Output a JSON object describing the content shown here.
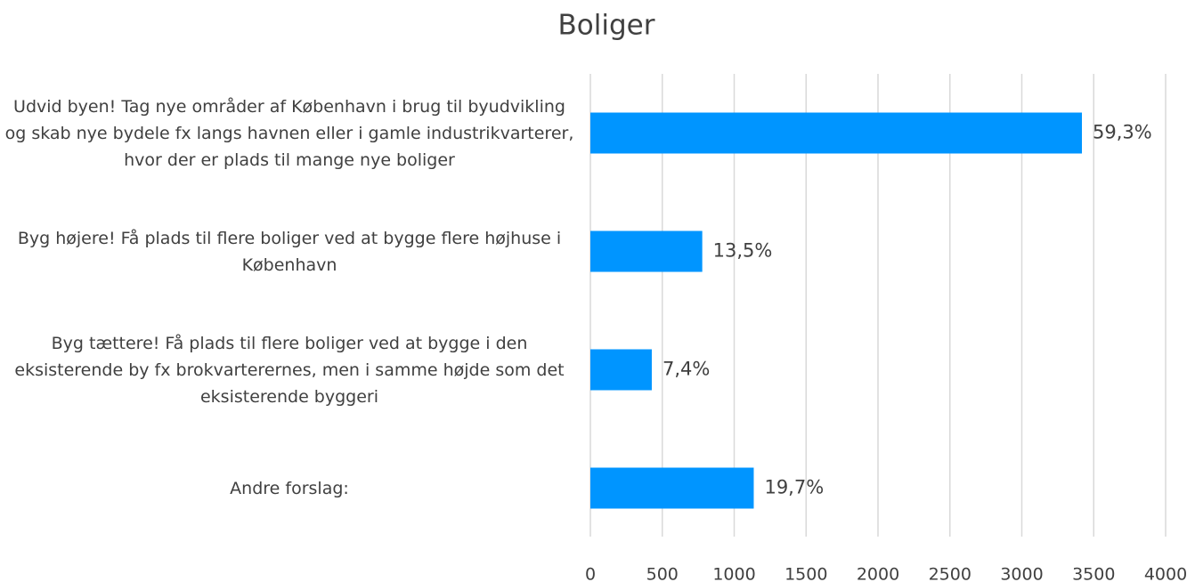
{
  "chart_data": {
    "type": "barh",
    "title": "Boliger",
    "categories": [
      "Udvid byen! Tag nye områder af København i brug til byudvikling og skab nye bydele fx langs havnen eller i gamle industrikvarterer, hvor der er plads til mange nye boliger",
      "Byg højere! Få plads til flere boliger ved at bygge flere højhuse i København",
      "Byg tættere! Få plads til flere boliger ved at bygge i den eksisterende by fx brokvarterernes, men i samme højde som det eksisterende byggeri",
      "Andre forslag:"
    ],
    "values": [
      3418,
      778,
      427,
      1136
    ],
    "value_labels": [
      "59,3%",
      "13,5%",
      "7,4%",
      "19,7%"
    ],
    "color": "#0095ff",
    "xlim": [
      0,
      4000
    ],
    "xticks": [
      0,
      500,
      1000,
      1500,
      2000,
      2500,
      3000,
      3500,
      4000
    ],
    "grid": true
  }
}
